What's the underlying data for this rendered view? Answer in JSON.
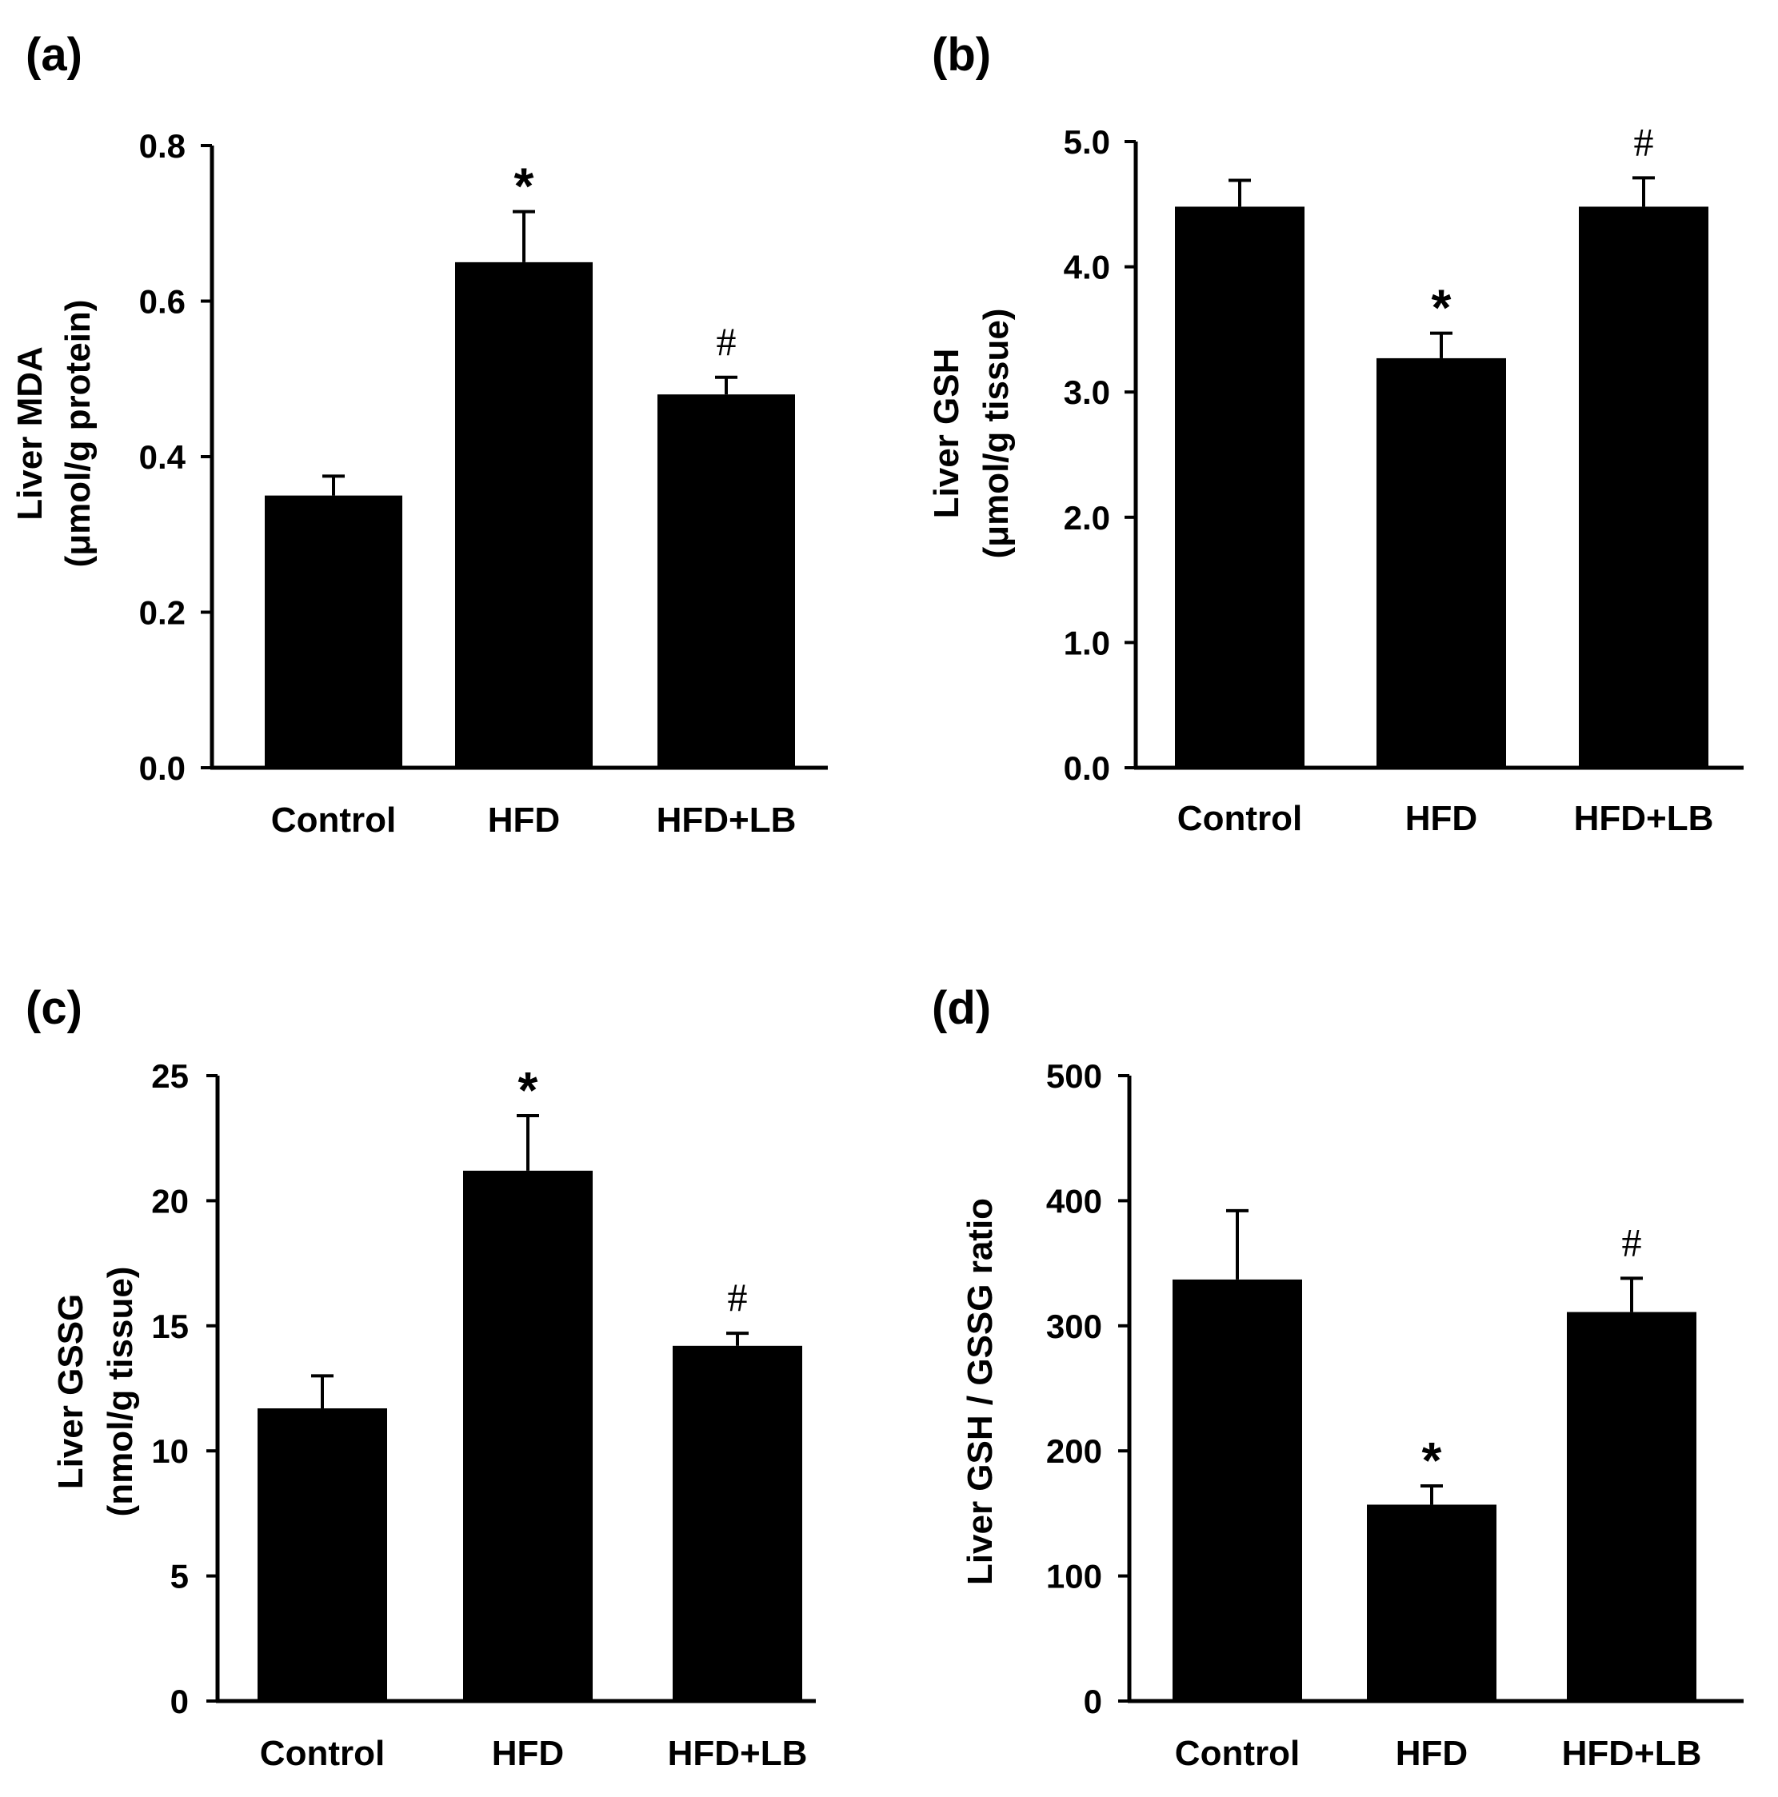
{
  "figure": {
    "colors": {
      "bar": "#000000",
      "axis": "#000000",
      "background": "#ffffff"
    },
    "chart_data": [
      {
        "type": "bar",
        "panel": "(a)",
        "title": "",
        "categories": [
          "Control",
          "HFD",
          "HFD+LB"
        ],
        "values": [
          0.35,
          0.65,
          0.48
        ],
        "errors": [
          0.025,
          0.065,
          0.022
        ],
        "significance": [
          "",
          "*",
          "#"
        ],
        "ylabel_line1": "Liver MDA",
        "ylabel_line2": "(μmol/g protein)",
        "xlabel": "",
        "ylim": [
          0,
          0.8
        ],
        "yticks": [
          0.0,
          0.2,
          0.4,
          0.6,
          0.8
        ],
        "ytick_labels": [
          "0.0",
          "0.2",
          "0.4",
          "0.6",
          "0.8"
        ]
      },
      {
        "type": "bar",
        "panel": "(b)",
        "title": "",
        "categories": [
          "Control",
          "HFD",
          "HFD+LB"
        ],
        "values": [
          4.48,
          3.27,
          4.48
        ],
        "errors": [
          0.21,
          0.2,
          0.23
        ],
        "significance": [
          "",
          "*",
          "#"
        ],
        "ylabel_line1": "Liver GSH",
        "ylabel_line2": "(μmol/g tissue)",
        "xlabel": "",
        "ylim": [
          0,
          5
        ],
        "yticks": [
          0,
          1,
          2,
          3,
          4,
          5
        ],
        "ytick_labels": [
          "0.0",
          "1.0",
          "2.0",
          "3.0",
          "4.0",
          "5.0"
        ]
      },
      {
        "type": "bar",
        "panel": "(c)",
        "title": "",
        "categories": [
          "Control",
          "HFD",
          "HFD+LB"
        ],
        "values": [
          11.7,
          21.2,
          14.2
        ],
        "errors": [
          1.3,
          2.2,
          0.5
        ],
        "significance": [
          "",
          "*",
          "#"
        ],
        "ylabel_line1": "Liver GSSG",
        "ylabel_line2": "(nmol/g tissue)",
        "xlabel": "",
        "ylim": [
          0,
          25
        ],
        "yticks": [
          0,
          5,
          10,
          15,
          20,
          25
        ],
        "ytick_labels": [
          "0",
          "5",
          "10",
          "15",
          "20",
          "25"
        ]
      },
      {
        "type": "bar",
        "panel": "(d)",
        "title": "",
        "categories": [
          "Control",
          "HFD",
          "HFD+LB"
        ],
        "values": [
          337,
          157,
          311
        ],
        "errors": [
          55,
          15,
          27
        ],
        "significance": [
          "",
          "*",
          "#"
        ],
        "ylabel_line1": "Liver GSH / GSSG ratio",
        "ylabel_line2": "",
        "xlabel": "",
        "ylim": [
          0,
          500
        ],
        "yticks": [
          0,
          100,
          200,
          300,
          400,
          500
        ],
        "ytick_labels": [
          "0",
          "100",
          "200",
          "300",
          "400",
          "500"
        ]
      }
    ]
  }
}
